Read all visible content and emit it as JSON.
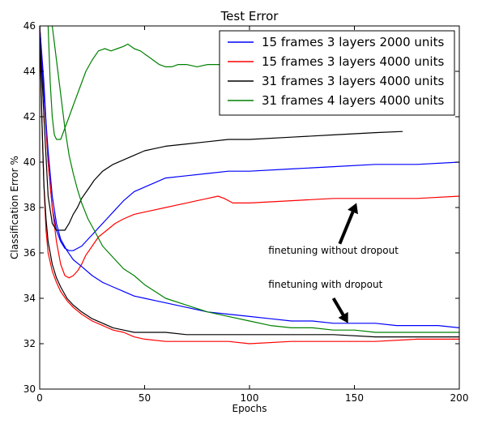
{
  "chart_data": {
    "type": "line",
    "title": "Test Error",
    "xlabel": "Epochs",
    "ylabel": "Classification Error %",
    "xlim": [
      0,
      200
    ],
    "ylim": [
      30,
      46
    ],
    "xticks": [
      0,
      50,
      100,
      150,
      200
    ],
    "yticks": [
      30,
      32,
      34,
      36,
      38,
      40,
      42,
      44,
      46
    ],
    "grid": false,
    "legend_position": "top-right",
    "series": [
      {
        "name": "15 frames 3 layers 2000 units",
        "color": "#0000ff",
        "style": "without-dropout",
        "points": [
          [
            0,
            46.0
          ],
          [
            2,
            43.5
          ],
          [
            4,
            40.0
          ],
          [
            6,
            38.0
          ],
          [
            8,
            37.0
          ],
          [
            10,
            36.5
          ],
          [
            12,
            36.2
          ],
          [
            14,
            36.1
          ],
          [
            16,
            36.1
          ],
          [
            18,
            36.2
          ],
          [
            20,
            36.3
          ],
          [
            22,
            36.5
          ],
          [
            25,
            36.8
          ],
          [
            28,
            37.1
          ],
          [
            32,
            37.5
          ],
          [
            36,
            37.9
          ],
          [
            40,
            38.3
          ],
          [
            45,
            38.7
          ],
          [
            50,
            38.9
          ],
          [
            55,
            39.1
          ],
          [
            60,
            39.3
          ],
          [
            70,
            39.4
          ],
          [
            80,
            39.5
          ],
          [
            90,
            39.6
          ],
          [
            100,
            39.6
          ],
          [
            120,
            39.7
          ],
          [
            140,
            39.8
          ],
          [
            160,
            39.9
          ],
          [
            180,
            39.9
          ],
          [
            200,
            40.0
          ]
        ]
      },
      {
        "name": "15 frames 3 layers 4000 units",
        "color": "#ff0000",
        "style": "without-dropout",
        "points": [
          [
            0,
            46.0
          ],
          [
            2,
            43.0
          ],
          [
            4,
            40.0
          ],
          [
            6,
            38.0
          ],
          [
            8,
            36.5
          ],
          [
            10,
            35.5
          ],
          [
            12,
            35.0
          ],
          [
            14,
            34.9
          ],
          [
            16,
            35.0
          ],
          [
            18,
            35.2
          ],
          [
            20,
            35.5
          ],
          [
            22,
            35.9
          ],
          [
            25,
            36.3
          ],
          [
            28,
            36.7
          ],
          [
            32,
            37.0
          ],
          [
            36,
            37.3
          ],
          [
            40,
            37.5
          ],
          [
            45,
            37.7
          ],
          [
            50,
            37.8
          ],
          [
            55,
            37.9
          ],
          [
            60,
            38.0
          ],
          [
            65,
            38.1
          ],
          [
            70,
            38.2
          ],
          [
            75,
            38.3
          ],
          [
            80,
            38.4
          ],
          [
            85,
            38.5
          ],
          [
            88,
            38.4
          ],
          [
            92,
            38.2
          ],
          [
            96,
            38.2
          ],
          [
            100,
            38.2
          ],
          [
            120,
            38.3
          ],
          [
            140,
            38.4
          ],
          [
            160,
            38.4
          ],
          [
            180,
            38.4
          ],
          [
            200,
            38.5
          ]
        ]
      },
      {
        "name": "31 frames 3 layers 4000 units",
        "color": "#000000",
        "style": "without-dropout",
        "points": [
          [
            0,
            46.0
          ],
          [
            2,
            42.0
          ],
          [
            4,
            38.5
          ],
          [
            6,
            37.3
          ],
          [
            8,
            37.0
          ],
          [
            10,
            37.0
          ],
          [
            12,
            37.0
          ],
          [
            14,
            37.3
          ],
          [
            16,
            37.7
          ],
          [
            18,
            38.0
          ],
          [
            20,
            38.4
          ],
          [
            23,
            38.8
          ],
          [
            26,
            39.2
          ],
          [
            30,
            39.6
          ],
          [
            35,
            39.9
          ],
          [
            40,
            40.1
          ],
          [
            45,
            40.3
          ],
          [
            50,
            40.5
          ],
          [
            55,
            40.6
          ],
          [
            60,
            40.7
          ],
          [
            70,
            40.8
          ],
          [
            80,
            40.9
          ],
          [
            90,
            41.0
          ],
          [
            100,
            41.0
          ],
          [
            120,
            41.1
          ],
          [
            140,
            41.2
          ],
          [
            160,
            41.3
          ],
          [
            173,
            41.35
          ]
        ]
      },
      {
        "name": "31 frames 4 layers 4000 units",
        "color": "#008000",
        "style": "without-dropout",
        "points": [
          [
            4,
            46.0
          ],
          [
            5,
            43.5
          ],
          [
            6,
            42.0
          ],
          [
            7,
            41.2
          ],
          [
            8,
            41.0
          ],
          [
            10,
            41.0
          ],
          [
            12,
            41.5
          ],
          [
            14,
            42.0
          ],
          [
            16,
            42.5
          ],
          [
            18,
            43.0
          ],
          [
            20,
            43.5
          ],
          [
            22,
            44.0
          ],
          [
            25,
            44.5
          ],
          [
            28,
            44.9
          ],
          [
            31,
            45.0
          ],
          [
            34,
            44.9
          ],
          [
            37,
            45.0
          ],
          [
            40,
            45.1
          ],
          [
            42,
            45.2
          ],
          [
            45,
            45.0
          ],
          [
            48,
            44.9
          ],
          [
            51,
            44.7
          ],
          [
            54,
            44.5
          ],
          [
            57,
            44.3
          ],
          [
            60,
            44.2
          ],
          [
            63,
            44.2
          ],
          [
            66,
            44.3
          ],
          [
            70,
            44.3
          ],
          [
            75,
            44.2
          ],
          [
            80,
            44.3
          ],
          [
            85,
            44.3
          ],
          [
            90,
            44.3
          ]
        ]
      },
      {
        "color": "#0000ff",
        "style": "with-dropout",
        "points": [
          [
            0,
            46.0
          ],
          [
            2,
            43.0
          ],
          [
            4,
            40.5
          ],
          [
            6,
            38.5
          ],
          [
            8,
            37.3
          ],
          [
            10,
            36.6
          ],
          [
            13,
            36.1
          ],
          [
            16,
            35.7
          ],
          [
            20,
            35.4
          ],
          [
            25,
            35.0
          ],
          [
            30,
            34.7
          ],
          [
            35,
            34.5
          ],
          [
            40,
            34.3
          ],
          [
            45,
            34.1
          ],
          [
            50,
            34.0
          ],
          [
            55,
            33.9
          ],
          [
            60,
            33.8
          ],
          [
            70,
            33.6
          ],
          [
            80,
            33.4
          ],
          [
            90,
            33.3
          ],
          [
            100,
            33.2
          ],
          [
            110,
            33.1
          ],
          [
            120,
            33.0
          ],
          [
            130,
            33.0
          ],
          [
            140,
            32.9
          ],
          [
            150,
            32.9
          ],
          [
            160,
            32.9
          ],
          [
            170,
            32.8
          ],
          [
            180,
            32.8
          ],
          [
            190,
            32.8
          ],
          [
            200,
            32.7
          ]
        ]
      },
      {
        "color": "#ff0000",
        "style": "with-dropout",
        "points": [
          [
            0,
            46.0
          ],
          [
            1,
            42.0
          ],
          [
            2,
            39.0
          ],
          [
            3,
            37.0
          ],
          [
            4,
            36.0
          ],
          [
            6,
            35.2
          ],
          [
            8,
            34.7
          ],
          [
            10,
            34.3
          ],
          [
            13,
            33.9
          ],
          [
            16,
            33.6
          ],
          [
            20,
            33.3
          ],
          [
            25,
            33.0
          ],
          [
            30,
            32.8
          ],
          [
            35,
            32.6
          ],
          [
            40,
            32.5
          ],
          [
            45,
            32.3
          ],
          [
            50,
            32.2
          ],
          [
            60,
            32.1
          ],
          [
            70,
            32.1
          ],
          [
            80,
            32.1
          ],
          [
            90,
            32.1
          ],
          [
            100,
            32.0
          ],
          [
            120,
            32.1
          ],
          [
            140,
            32.1
          ],
          [
            160,
            32.1
          ],
          [
            180,
            32.2
          ],
          [
            200,
            32.2
          ]
        ]
      },
      {
        "color": "#000000",
        "style": "with-dropout",
        "points": [
          [
            0,
            46.0
          ],
          [
            1,
            42.0
          ],
          [
            2,
            39.0
          ],
          [
            3,
            37.5
          ],
          [
            4,
            36.5
          ],
          [
            6,
            35.5
          ],
          [
            8,
            34.9
          ],
          [
            10,
            34.5
          ],
          [
            13,
            34.0
          ],
          [
            16,
            33.7
          ],
          [
            20,
            33.4
          ],
          [
            25,
            33.1
          ],
          [
            30,
            32.9
          ],
          [
            35,
            32.7
          ],
          [
            40,
            32.6
          ],
          [
            45,
            32.5
          ],
          [
            50,
            32.5
          ],
          [
            60,
            32.5
          ],
          [
            70,
            32.4
          ],
          [
            80,
            32.4
          ],
          [
            90,
            32.4
          ],
          [
            100,
            32.4
          ],
          [
            120,
            32.4
          ],
          [
            140,
            32.4
          ],
          [
            160,
            32.3
          ],
          [
            180,
            32.3
          ],
          [
            200,
            32.3
          ]
        ]
      },
      {
        "color": "#008000",
        "style": "with-dropout",
        "points": [
          [
            6,
            46.0
          ],
          [
            8,
            44.5
          ],
          [
            10,
            43.0
          ],
          [
            12,
            41.5
          ],
          [
            14,
            40.3
          ],
          [
            16,
            39.5
          ],
          [
            18,
            38.8
          ],
          [
            20,
            38.2
          ],
          [
            23,
            37.5
          ],
          [
            26,
            37.0
          ],
          [
            30,
            36.3
          ],
          [
            35,
            35.8
          ],
          [
            40,
            35.3
          ],
          [
            45,
            35.0
          ],
          [
            50,
            34.6
          ],
          [
            55,
            34.3
          ],
          [
            60,
            34.0
          ],
          [
            70,
            33.7
          ],
          [
            80,
            33.4
          ],
          [
            90,
            33.2
          ],
          [
            100,
            33.0
          ],
          [
            110,
            32.8
          ],
          [
            120,
            32.7
          ],
          [
            130,
            32.7
          ],
          [
            140,
            32.6
          ],
          [
            150,
            32.6
          ],
          [
            160,
            32.5
          ],
          [
            170,
            32.5
          ],
          [
            180,
            32.5
          ],
          [
            190,
            32.5
          ],
          [
            200,
            32.5
          ]
        ]
      }
    ],
    "annotations": [
      {
        "text": "finetuning without dropout",
        "x": 109,
        "y": 36.1,
        "arrow_from": [
          143,
          36.4
        ],
        "arrow_to": [
          151,
          38.2
        ]
      },
      {
        "text": "finetuning with dropout",
        "x": 109,
        "y": 34.6,
        "arrow_from": [
          140,
          34.0
        ],
        "arrow_to": [
          147,
          32.9
        ]
      }
    ]
  }
}
